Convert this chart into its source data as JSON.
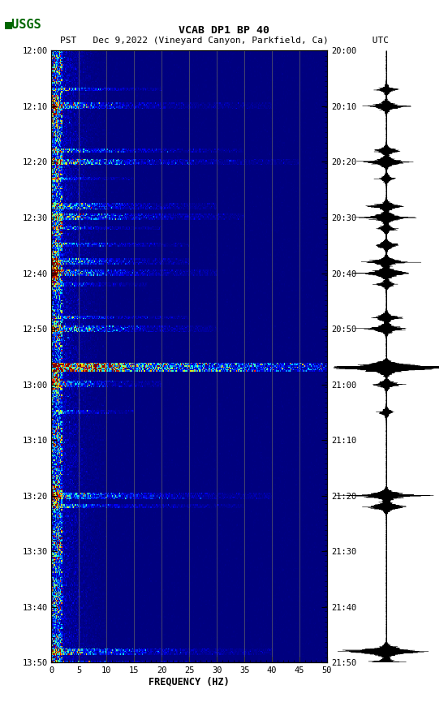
{
  "title_line1": "VCAB DP1 BP 40",
  "title_line2": "PST   Dec 9,2022 (Vineyard Canyon, Parkfield, Ca)        UTC",
  "xlabel": "FREQUENCY (HZ)",
  "xticks": [
    0,
    5,
    10,
    15,
    20,
    25,
    30,
    35,
    40,
    45,
    50
  ],
  "left_ytick_labels": [
    "12:00",
    "12:10",
    "12:20",
    "12:30",
    "12:40",
    "12:50",
    "13:00",
    "13:10",
    "13:20",
    "13:30",
    "13:40",
    "13:50"
  ],
  "right_ytick_labels": [
    "20:00",
    "20:10",
    "20:20",
    "20:30",
    "20:40",
    "20:50",
    "21:00",
    "21:10",
    "21:20",
    "21:30",
    "21:40",
    "21:50"
  ],
  "n_time_rows": 480,
  "n_freq_cols": 300,
  "vline_freqs": [
    5,
    10,
    15,
    20,
    25,
    30,
    35,
    40,
    45
  ],
  "grid_color": "#808060",
  "usgs_color": "#006600",
  "background_color": "#ffffff"
}
